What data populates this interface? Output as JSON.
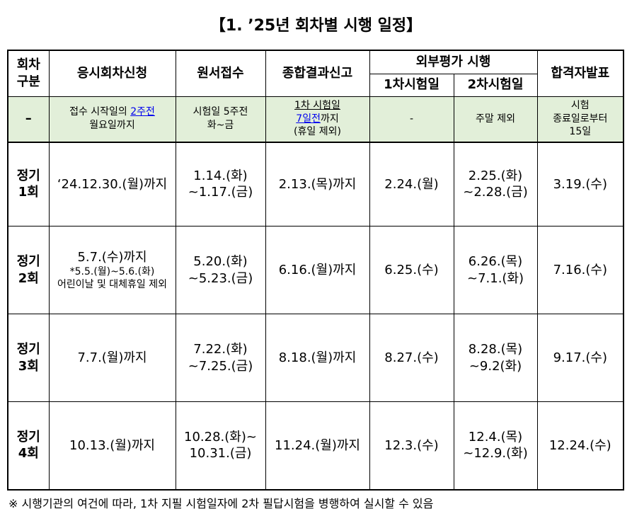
{
  "title": "【1. ’25년 회차별 시행 일정】",
  "table": {
    "header": {
      "round": [
        "회차",
        "구분"
      ],
      "apply": "응시회차신청",
      "receipt": "원서접수",
      "report": "종합결과신고",
      "external": "외부평가 시행",
      "first": "1차시험일",
      "second": "2차시험일",
      "announce": "합격자발표"
    },
    "rule": {
      "round": "–",
      "apply": [
        "접수 시작일의",
        "2주전",
        "월요일까지"
      ],
      "receipt": [
        "시험일 5주전",
        "화~금"
      ],
      "report": [
        "1차 시험일",
        "7일전",
        "까지",
        "(휴일 제외)"
      ],
      "first": "-",
      "second": "주말 제외",
      "announce": [
        "시험",
        "종료일로부터",
        "15일"
      ]
    },
    "rows": [
      {
        "round": [
          "정기",
          "1회"
        ],
        "apply": [
          "‘24.12.30.(월)까지"
        ],
        "receipt": [
          "1.14.(화)",
          "~1.17.(금)"
        ],
        "report": [
          "2.13.(목)까지"
        ],
        "first": [
          "2.24.(월)"
        ],
        "second": [
          "2.25.(화)",
          "~2.28.(금)"
        ],
        "announce": [
          "3.19.(수)"
        ]
      },
      {
        "round": [
          "정기",
          "2회"
        ],
        "apply": [
          "5.7.(수)까지",
          "*5.5.(월)~5.6.(화)",
          "어린이날 및 대체휴일 제외"
        ],
        "receipt": [
          "5.20.(화)",
          "~5.23.(금)"
        ],
        "report": [
          "6.16.(월)까지"
        ],
        "first": [
          "6.25.(수)"
        ],
        "second": [
          "6.26.(목)",
          "~7.1.(화)"
        ],
        "announce": [
          "7.16.(수)"
        ]
      },
      {
        "round": [
          "정기",
          "3회"
        ],
        "apply": [
          "7.7.(월)까지"
        ],
        "receipt": [
          "7.22.(화)",
          "~7.25.(금)"
        ],
        "report": [
          "8.18.(월)까지"
        ],
        "first": [
          "8.27.(수)"
        ],
        "second": [
          "8.28.(목)",
          "~9.2(화)"
        ],
        "announce": [
          "9.17.(수)"
        ]
      },
      {
        "round": [
          "정기",
          "4회"
        ],
        "apply": [
          "10.13.(월)까지"
        ],
        "receipt": [
          "10.28.(화)~",
          "10.31.(금)"
        ],
        "report": [
          "11.24.(월)까지"
        ],
        "first": [
          "12.3.(수)"
        ],
        "second": [
          "12.4.(목)",
          "~12.9.(화)"
        ],
        "announce": [
          "12.24.(수)"
        ]
      }
    ]
  },
  "footnote": "※ 시행기관의 여건에 따라, 1차 지필 시험일자에 2차 필답시험을 병행하여 실시할 수 있음"
}
